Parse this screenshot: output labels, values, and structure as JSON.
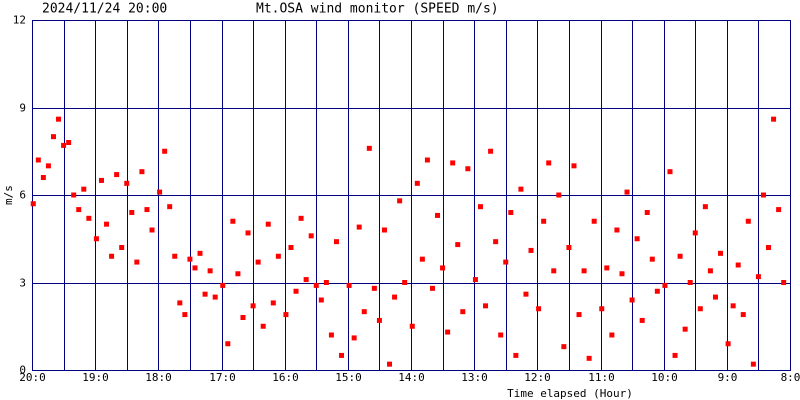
{
  "chart_data": {
    "type": "scatter",
    "title": "2024/11/24 20:00",
    "subtitle": "Mt.OSA wind monitor (SPEED m/s)",
    "x_label": "Time elapsed (Hour)",
    "y_label": "m/s",
    "color": "#ff0000",
    "grid": true,
    "xlim": [
      0,
      12
    ],
    "ylim": [
      0,
      12
    ],
    "xticks": [
      {
        "value": 0,
        "label": "20:0"
      },
      {
        "value": 1,
        "label": "19:0"
      },
      {
        "value": 2,
        "label": "18:0"
      },
      {
        "value": 3,
        "label": "17:0"
      },
      {
        "value": 4,
        "label": "16:0"
      },
      {
        "value": 5,
        "label": "15:0"
      },
      {
        "value": 6,
        "label": "14:0"
      },
      {
        "value": 7,
        "label": "13:0"
      },
      {
        "value": 8,
        "label": "12:0"
      },
      {
        "value": 9,
        "label": "11:0"
      },
      {
        "value": 10,
        "label": "10:0"
      },
      {
        "value": 11,
        "label": "9:0"
      },
      {
        "value": 12,
        "label": "8:0"
      }
    ],
    "x_minor_grid": [
      0.5,
      1.5,
      2.5,
      3.5,
      4.5,
      5.5,
      6.5,
      7.5,
      8.5,
      9.5,
      10.5,
      11.5
    ],
    "yticks": [
      0,
      3,
      6,
      9,
      12
    ],
    "x": [
      0.02,
      0.1,
      0.18,
      0.26,
      0.34,
      0.42,
      0.5,
      0.58,
      0.66,
      0.74,
      0.82,
      0.9,
      1.02,
      1.1,
      1.18,
      1.26,
      1.34,
      1.42,
      1.5,
      1.58,
      1.66,
      1.74,
      1.82,
      1.9,
      2.02,
      2.1,
      2.18,
      2.26,
      2.34,
      2.42,
      2.5,
      2.58,
      2.66,
      2.74,
      2.82,
      2.9,
      3.02,
      3.1,
      3.18,
      3.26,
      3.34,
      3.42,
      3.5,
      3.58,
      3.66,
      3.74,
      3.82,
      3.9,
      4.02,
      4.1,
      4.18,
      4.26,
      4.34,
      4.42,
      4.5,
      4.58,
      4.66,
      4.74,
      4.82,
      4.9,
      5.02,
      5.1,
      5.18,
      5.26,
      5.34,
      5.42,
      5.5,
      5.58,
      5.66,
      5.74,
      5.82,
      5.9,
      6.02,
      6.1,
      6.18,
      6.26,
      6.34,
      6.42,
      6.5,
      6.58,
      6.66,
      6.74,
      6.82,
      6.9,
      7.02,
      7.1,
      7.18,
      7.26,
      7.34,
      7.42,
      7.5,
      7.58,
      7.66,
      7.74,
      7.82,
      7.9,
      8.02,
      8.1,
      8.18,
      8.26,
      8.34,
      8.42,
      8.5,
      8.58,
      8.66,
      8.74,
      8.82,
      8.9,
      9.02,
      9.1,
      9.18,
      9.26,
      9.34,
      9.42,
      9.5,
      9.58,
      9.66,
      9.74,
      9.82,
      9.9,
      10.02,
      10.1,
      10.18,
      10.26,
      10.34,
      10.42,
      10.5,
      10.58,
      10.66,
      10.74,
      10.82,
      10.9,
      11.02,
      11.1,
      11.18,
      11.26,
      11.34,
      11.42,
      11.5,
      11.58,
      11.66,
      11.74,
      11.82,
      11.9
    ],
    "values": [
      5.7,
      7.2,
      6.6,
      7.0,
      8.0,
      8.6,
      7.7,
      7.8,
      6.0,
      5.5,
      6.2,
      5.2,
      4.5,
      6.5,
      5.0,
      3.9,
      6.7,
      4.2,
      6.4,
      5.4,
      3.7,
      6.8,
      5.5,
      4.8,
      6.1,
      7.5,
      5.6,
      3.9,
      2.3,
      1.9,
      3.8,
      3.5,
      4.0,
      2.6,
      3.4,
      2.5,
      2.9,
      0.9,
      5.1,
      3.3,
      1.8,
      4.7,
      2.2,
      3.7,
      1.5,
      5.0,
      2.3,
      3.9,
      1.9,
      4.2,
      2.7,
      5.2,
      3.1,
      4.6,
      2.9,
      2.4,
      3.0,
      1.2,
      4.4,
      0.5,
      2.9,
      1.1,
      4.9,
      2.0,
      7.6,
      2.8,
      1.7,
      4.8,
      0.2,
      2.5,
      5.8,
      3.0,
      1.5,
      6.4,
      3.8,
      7.2,
      2.8,
      5.3,
      3.5,
      1.3,
      7.1,
      4.3,
      2.0,
      6.9,
      3.1,
      5.6,
      2.2,
      7.5,
      4.4,
      1.2,
      3.7,
      5.4,
      0.5,
      6.2,
      2.6,
      4.1,
      2.1,
      5.1,
      7.1,
      3.4,
      6.0,
      0.8,
      4.2,
      7.0,
      1.9,
      3.4,
      0.4,
      5.1,
      2.1,
      3.5,
      1.2,
      4.8,
      3.3,
      6.1,
      2.4,
      4.5,
      1.7,
      5.4,
      3.8,
      2.7,
      2.9,
      6.8,
      0.5,
      3.9,
      1.4,
      3.0,
      4.7,
      2.1,
      5.6,
      3.4,
      2.5,
      4.0,
      0.9,
      2.2,
      3.6,
      1.9,
      5.1,
      0.2,
      3.2,
      6.0,
      4.2,
      8.6,
      5.5,
      3.0
    ]
  }
}
